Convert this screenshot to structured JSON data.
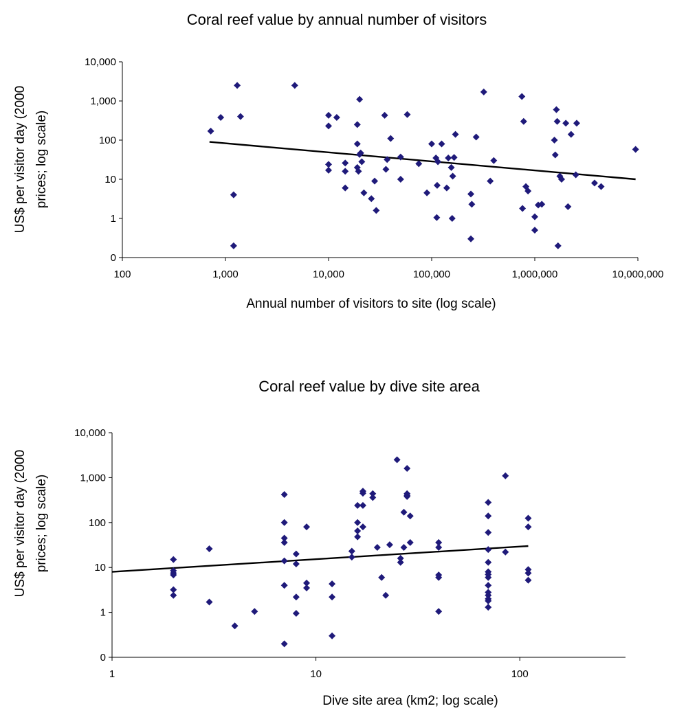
{
  "chart_data": [
    {
      "type": "scatter",
      "title": "Coral reef value by annual number of visitors",
      "xlabel": "Annual number of visitors to site (log scale)",
      "ylabel_line1": "US$ per visitor day (2000",
      "ylabel_line2": "prices; log scale)",
      "x_scale": "log",
      "y_scale": "log",
      "xlim": [
        100,
        10000000
      ],
      "ylim": [
        0.1,
        10000
      ],
      "x_ticks": [
        {
          "value": 100,
          "label": "100"
        },
        {
          "value": 1000,
          "label": "1,000"
        },
        {
          "value": 10000,
          "label": "10,000"
        },
        {
          "value": 100000,
          "label": "100,000"
        },
        {
          "value": 1000000,
          "label": "1,000,000"
        },
        {
          "value": 10000000,
          "label": "10,000,000"
        }
      ],
      "y_ticks": [
        {
          "value": 0.1,
          "label": "0"
        },
        {
          "value": 1,
          "label": "1"
        },
        {
          "value": 10,
          "label": "10"
        },
        {
          "value": 100,
          "label": "100"
        },
        {
          "value": 1000,
          "label": "1,000"
        },
        {
          "value": 10000,
          "label": "10,000"
        }
      ],
      "grid": false,
      "legend": "none",
      "marker_color": "#1f1a7a",
      "trend_color": "#000000",
      "trendline": {
        "x": [
          700,
          9500000
        ],
        "y": [
          90,
          10
        ]
      },
      "points": [
        [
          720,
          170
        ],
        [
          900,
          380
        ],
        [
          1200,
          4
        ],
        [
          1200,
          0.2
        ],
        [
          1300,
          2500
        ],
        [
          1400,
          400
        ],
        [
          4700,
          2500
        ],
        [
          10000,
          430
        ],
        [
          10000,
          230
        ],
        [
          10000,
          24
        ],
        [
          10000,
          17
        ],
        [
          12000,
          380
        ],
        [
          14500,
          16
        ],
        [
          14500,
          26
        ],
        [
          14500,
          6
        ],
        [
          19000,
          20
        ],
        [
          19000,
          80
        ],
        [
          19000,
          250
        ],
        [
          19500,
          16
        ],
        [
          20000,
          1100
        ],
        [
          20000,
          43
        ],
        [
          20500,
          47
        ],
        [
          21000,
          28
        ],
        [
          22000,
          4.5
        ],
        [
          26000,
          3.2
        ],
        [
          28000,
          9
        ],
        [
          29000,
          1.6
        ],
        [
          35000,
          430
        ],
        [
          36000,
          18
        ],
        [
          37000,
          32
        ],
        [
          40000,
          110
        ],
        [
          50000,
          10
        ],
        [
          50000,
          37
        ],
        [
          58000,
          450
        ],
        [
          75000,
          25
        ],
        [
          90000,
          4.5
        ],
        [
          100000,
          80
        ],
        [
          110000,
          35
        ],
        [
          112000,
          1.05
        ],
        [
          113000,
          7
        ],
        [
          115000,
          28
        ],
        [
          125000,
          80
        ],
        [
          140000,
          6
        ],
        [
          145000,
          35
        ],
        [
          155000,
          20
        ],
        [
          158000,
          1.0
        ],
        [
          160000,
          12
        ],
        [
          165000,
          36
        ],
        [
          170000,
          140
        ],
        [
          240000,
          0.3
        ],
        [
          240000,
          4.2
        ],
        [
          245000,
          2.3
        ],
        [
          270000,
          120
        ],
        [
          320000,
          1700
        ],
        [
          370000,
          9
        ],
        [
          400000,
          30
        ],
        [
          750000,
          1300
        ],
        [
          760000,
          1.8
        ],
        [
          780000,
          300
        ],
        [
          820000,
          6.5
        ],
        [
          860000,
          5
        ],
        [
          1000000,
          1.1
        ],
        [
          1000000,
          0.5
        ],
        [
          1080000,
          2.2
        ],
        [
          1170000,
          2.3
        ],
        [
          1550000,
          100
        ],
        [
          1580000,
          42
        ],
        [
          1620000,
          600
        ],
        [
          1650000,
          300
        ],
        [
          1680000,
          0.2
        ],
        [
          1750000,
          12
        ],
        [
          1820000,
          10
        ],
        [
          2000000,
          270
        ],
        [
          2100000,
          2
        ],
        [
          2250000,
          140
        ],
        [
          2500000,
          13
        ],
        [
          2550000,
          270
        ],
        [
          3800000,
          8
        ],
        [
          4400000,
          6.5
        ],
        [
          9500000,
          58
        ]
      ]
    },
    {
      "type": "scatter",
      "title": "Coral reef value by dive site area",
      "xlabel": "Dive site area (km2; log scale)",
      "ylabel_line1": "US$ per visitor day (2000",
      "ylabel_line2": "prices; log scale)",
      "x_scale": "log",
      "y_scale": "log",
      "xlim": [
        1,
        330
      ],
      "ylim": [
        0.1,
        10000
      ],
      "x_ticks": [
        {
          "value": 1,
          "label": "1"
        },
        {
          "value": 10,
          "label": "10"
        },
        {
          "value": 100,
          "label": "100"
        }
      ],
      "y_ticks": [
        {
          "value": 0.1,
          "label": "0"
        },
        {
          "value": 1,
          "label": "1"
        },
        {
          "value": 10,
          "label": "10"
        },
        {
          "value": 100,
          "label": "100"
        },
        {
          "value": 1000,
          "label": "1,000"
        },
        {
          "value": 10000,
          "label": "10,000"
        }
      ],
      "grid": false,
      "legend": "none",
      "marker_color": "#1f1a7a",
      "trend_color": "#000000",
      "trendline": {
        "x": [
          1,
          110
        ],
        "y": [
          8,
          30
        ]
      },
      "points": [
        [
          2,
          15
        ],
        [
          2,
          8.5
        ],
        [
          2,
          6.8
        ],
        [
          2,
          7.5
        ],
        [
          2,
          3.2
        ],
        [
          2,
          2.4
        ],
        [
          3,
          26
        ],
        [
          3,
          1.7
        ],
        [
          4,
          0.5
        ],
        [
          5,
          1.05
        ],
        [
          7,
          420
        ],
        [
          7,
          100
        ],
        [
          7,
          45
        ],
        [
          7,
          36
        ],
        [
          7,
          14
        ],
        [
          7,
          4
        ],
        [
          7,
          0.2
        ],
        [
          8,
          20
        ],
        [
          8,
          12
        ],
        [
          8,
          2.2
        ],
        [
          8,
          0.95
        ],
        [
          9,
          80
        ],
        [
          9,
          4.5
        ],
        [
          9,
          3.5
        ],
        [
          12,
          4.3
        ],
        [
          12,
          2.2
        ],
        [
          12,
          0.3
        ],
        [
          15,
          23
        ],
        [
          15,
          17
        ],
        [
          16,
          240
        ],
        [
          16,
          100
        ],
        [
          16,
          65
        ],
        [
          16,
          48
        ],
        [
          17,
          500
        ],
        [
          17,
          450
        ],
        [
          17,
          240
        ],
        [
          17,
          80
        ],
        [
          19,
          440
        ],
        [
          19,
          360
        ],
        [
          20,
          28
        ],
        [
          21,
          6
        ],
        [
          22,
          2.4
        ],
        [
          23,
          32
        ],
        [
          25,
          2500
        ],
        [
          26,
          13
        ],
        [
          26,
          16
        ],
        [
          27,
          170
        ],
        [
          27,
          28
        ],
        [
          28,
          1600
        ],
        [
          28,
          440
        ],
        [
          28,
          400
        ],
        [
          28,
          380
        ],
        [
          29,
          140
        ],
        [
          29,
          36
        ],
        [
          40,
          36
        ],
        [
          40,
          28
        ],
        [
          40,
          6.8
        ],
        [
          40,
          6
        ],
        [
          40,
          1.05
        ],
        [
          70,
          280
        ],
        [
          70,
          140
        ],
        [
          70,
          60
        ],
        [
          70,
          25
        ],
        [
          70,
          13
        ],
        [
          70,
          8
        ],
        [
          70,
          7
        ],
        [
          70,
          6
        ],
        [
          70,
          4
        ],
        [
          70,
          2.8
        ],
        [
          70,
          2.4
        ],
        [
          70,
          2
        ],
        [
          70,
          1.8
        ],
        [
          70,
          1.3
        ],
        [
          85,
          1100
        ],
        [
          85,
          22
        ],
        [
          110,
          125
        ],
        [
          110,
          80
        ],
        [
          110,
          9
        ],
        [
          110,
          7.5
        ],
        [
          110,
          5.2
        ]
      ]
    }
  ]
}
